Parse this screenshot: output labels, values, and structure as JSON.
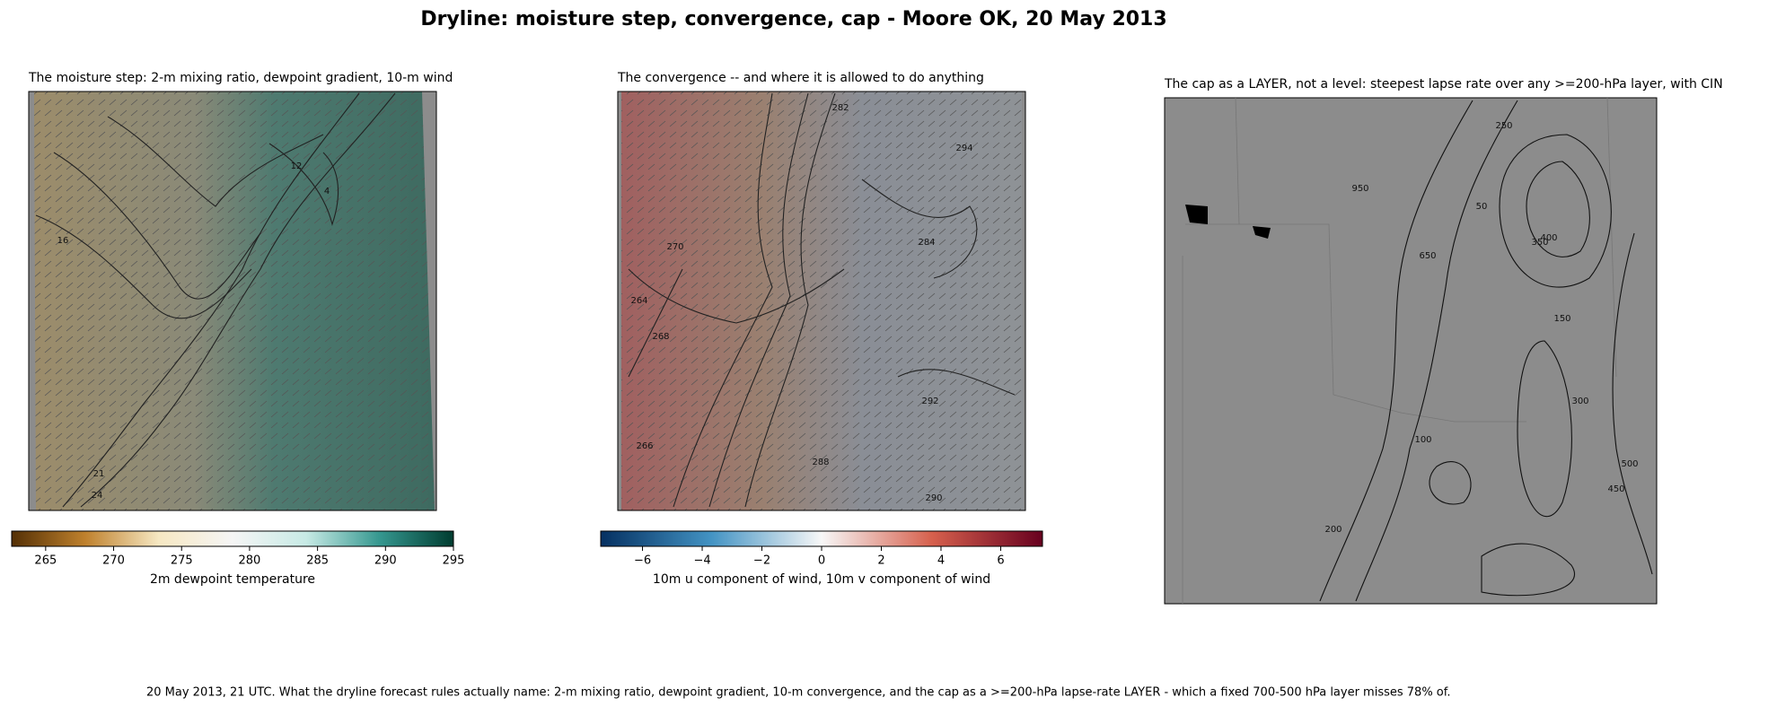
{
  "title": "Dryline: moisture step, convergence, cap - Moore OK, 20 May 2013",
  "panels": [
    {
      "title": "The moisture step: 2-m mixing ratio, dewpoint gradient, 10-m wind",
      "contour_labels": [
        16,
        21,
        24,
        4,
        12
      ],
      "colorbar": {
        "label": "2m dewpoint temperature",
        "colormap": [
          "#543005",
          "#bf812d",
          "#f6e8c3",
          "#f5f5f5",
          "#c7eae5",
          "#35978f",
          "#003c30"
        ],
        "xlim": [
          262.5,
          295
        ],
        "xticks": [
          265,
          270,
          275,
          280,
          285,
          290,
          295
        ]
      }
    },
    {
      "title": "The convergence -- and where it is allowed to do anything",
      "contour_labels": [
        264,
        266,
        268,
        270,
        282,
        284,
        288,
        294,
        292,
        290
      ],
      "colorbar": {
        "label": "10m u component of wind, 10m v component of wind",
        "colormap": [
          "#053061",
          "#4393c3",
          "#f7f7f7",
          "#d6604d",
          "#67001f"
        ],
        "xlim": [
          -7.4,
          7.4
        ],
        "xticks": [
          {
            "value": -6,
            "label": "−6"
          },
          {
            "value": -4,
            "label": "−4"
          },
          {
            "value": -2,
            "label": "−2"
          },
          0,
          2,
          4,
          6
        ]
      }
    },
    {
      "title": "The cap as a LAYER, not a level: steepest lapse rate over any >=200-hPa layer, with CIN",
      "contour_labels": [
        950,
        650,
        250,
        100,
        50,
        400,
        350,
        150,
        300,
        500,
        450,
        200
      ]
    }
  ],
  "footer": "20 May 2013, 21 UTC. What the dryline forecast rules actually name: 2-m mixing ratio, dewpoint gradient, 10-m convergence, and the cap as a >=200-hPa lapse-rate LAYER - which a fixed 700-500 hPa layer misses 78% of."
}
